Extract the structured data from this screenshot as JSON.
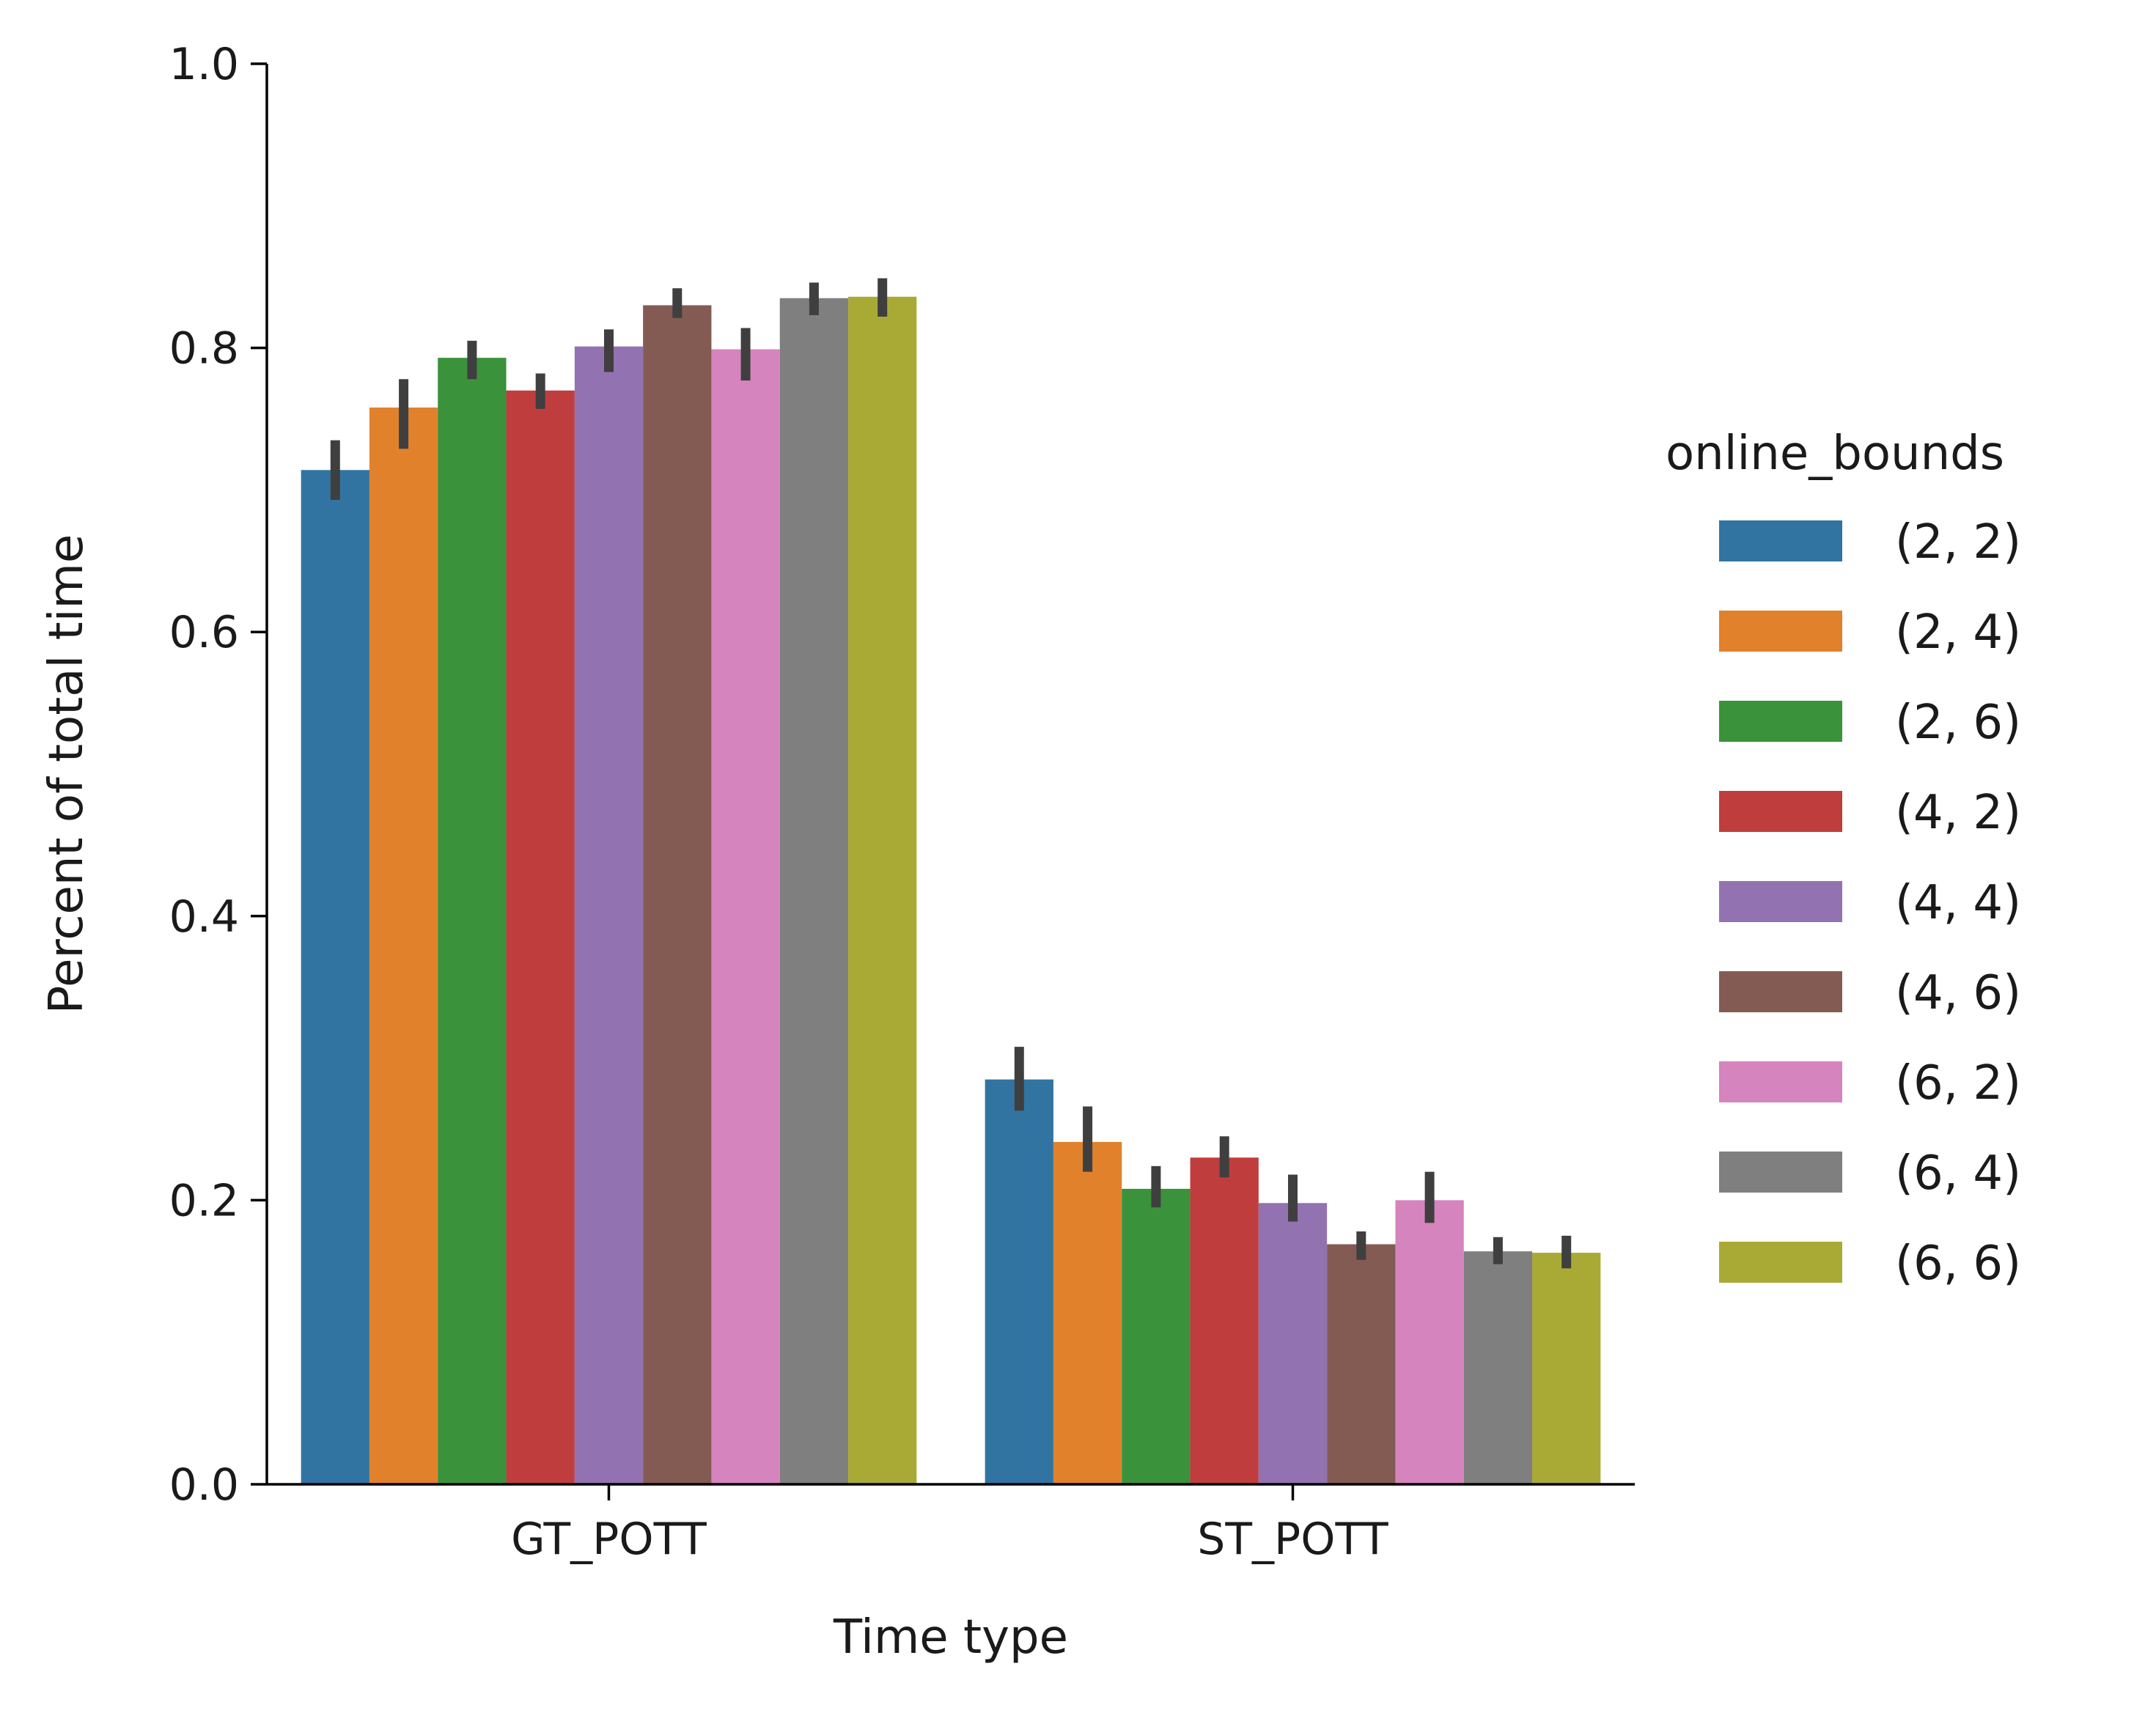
{
  "chart_data": {
    "type": "bar",
    "xlabel": "Time type",
    "ylabel": "Percent of total time",
    "ylim": [
      0,
      1.0
    ],
    "yticks": [
      0.0,
      0.2,
      0.4,
      0.6,
      0.8,
      1.0
    ],
    "ytick_labels": [
      "0.0",
      "0.2",
      "0.4",
      "0.6",
      "0.8",
      "1.0"
    ],
    "categories": [
      "GT_POTT",
      "ST_POTT"
    ],
    "legend": {
      "title": "online_bounds",
      "position": "right"
    },
    "grid": false,
    "series": [
      {
        "name": "(2, 2)",
        "color": "#3274a1",
        "values": [
          0.714,
          0.285
        ],
        "err_low": [
          0.693,
          0.263
        ],
        "err_high": [
          0.735,
          0.308
        ]
      },
      {
        "name": "(2, 4)",
        "color": "#e1812c",
        "values": [
          0.758,
          0.241
        ],
        "err_low": [
          0.729,
          0.22
        ],
        "err_high": [
          0.778,
          0.266
        ]
      },
      {
        "name": "(2, 6)",
        "color": "#3a923a",
        "values": [
          0.793,
          0.208
        ],
        "err_low": [
          0.778,
          0.195
        ],
        "err_high": [
          0.805,
          0.224
        ]
      },
      {
        "name": "(4, 2)",
        "color": "#c03d3e",
        "values": [
          0.77,
          0.23
        ],
        "err_low": [
          0.757,
          0.216
        ],
        "err_high": [
          0.782,
          0.245
        ]
      },
      {
        "name": "(4, 4)",
        "color": "#9372b2",
        "values": [
          0.801,
          0.198
        ],
        "err_low": [
          0.783,
          0.185
        ],
        "err_high": [
          0.813,
          0.218
        ]
      },
      {
        "name": "(4, 6)",
        "color": "#845b53",
        "values": [
          0.83,
          0.169
        ],
        "err_low": [
          0.821,
          0.158
        ],
        "err_high": [
          0.842,
          0.178
        ]
      },
      {
        "name": "(6, 2)",
        "color": "#d684bd",
        "values": [
          0.799,
          0.2
        ],
        "err_low": [
          0.777,
          0.184
        ],
        "err_high": [
          0.814,
          0.22
        ]
      },
      {
        "name": "(6, 4)",
        "color": "#7f7f7f",
        "values": [
          0.835,
          0.164
        ],
        "err_low": [
          0.823,
          0.155
        ],
        "err_high": [
          0.846,
          0.174
        ]
      },
      {
        "name": "(6, 6)",
        "color": "#a9aa35",
        "values": [
          0.836,
          0.163
        ],
        "err_low": [
          0.822,
          0.152
        ],
        "err_high": [
          0.849,
          0.175
        ]
      }
    ]
  }
}
